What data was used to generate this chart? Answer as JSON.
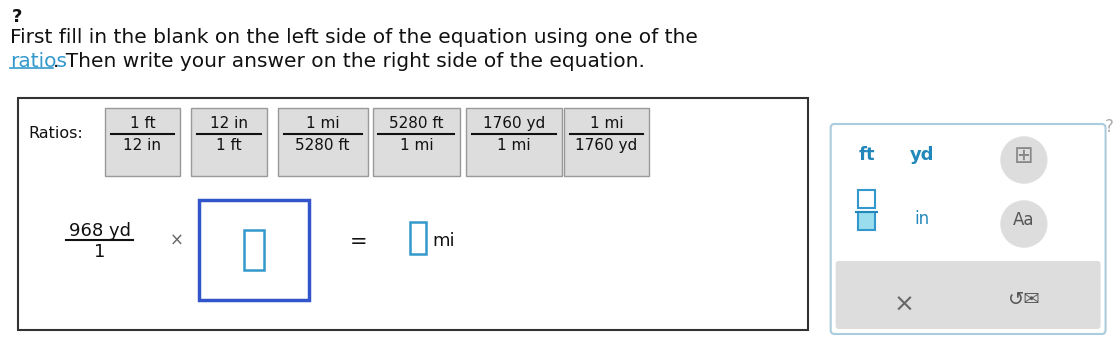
{
  "bg_color": "#ffffff",
  "question_mark_top": "?",
  "instruction_line1": "First fill in the blank on the left side of the equation using one of the",
  "instruction_line2_plain": ". Then write your answer on the right side of the equation.",
  "instruction_link": "ratios",
  "ratios_label": "Ratios:",
  "ratios": [
    {
      "num": "1 ft",
      "den": "12 in"
    },
    {
      "num": "12 in",
      "den": "1 ft"
    },
    {
      "num": "1 mi",
      "den": "5280 ft"
    },
    {
      "num": "5280 ft",
      "den": "1 mi"
    },
    {
      "num": "1760 yd",
      "den": "1 mi"
    },
    {
      "num": "1 mi",
      "den": "1760 yd"
    }
  ],
  "equation_left_num": "968 yd",
  "equation_left_den": "1",
  "times_symbol": "×",
  "equals_symbol": "=",
  "answer_unit": "mi",
  "main_box_color": "#333333",
  "ratio_box_bg": "#dddddd",
  "ratio_box_edge": "#999999",
  "blue_box_color": "#3355cc",
  "blue_input_color": "#3399cc",
  "sidebar_border": "#aaccdd",
  "ft_label": "ft",
  "yd_label": "yd",
  "in_label": "in",
  "text_color": "#111111",
  "link_color": "#3399cc",
  "sidebar_text_color": "#2288bb",
  "x_color": "#666666",
  "ratio_starts": [
    105,
    192,
    279,
    374,
    468,
    566
  ],
  "ratio_widths": [
    76,
    76,
    90,
    88,
    96,
    86
  ]
}
